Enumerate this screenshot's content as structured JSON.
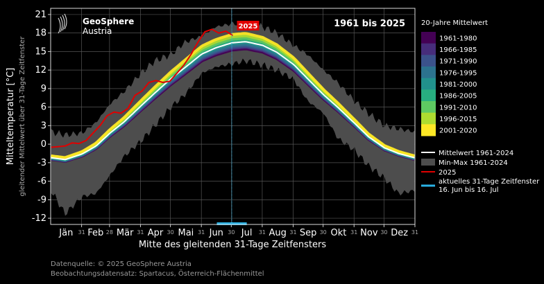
{
  "chart_data": {
    "type": "area",
    "title": "1961 bis 2025",
    "logo": {
      "name": "GeoSphere",
      "sub": "Austria"
    },
    "ylabel": "Mitteltemperatur [°C]",
    "ylabel_sub": "gleitender Mittelwert über 31-Tage Zeitfenster",
    "xlabel": "Mitte des gleitenden 31-Tage Zeitfensters",
    "ylim": [
      -13,
      22
    ],
    "yticks": [
      -12,
      -9,
      -6,
      -3,
      0,
      3,
      6,
      9,
      12,
      15,
      18,
      21
    ],
    "months": [
      "Jän",
      "Feb",
      "Mär",
      "Apr",
      "Mai",
      "Jun",
      "Jul",
      "Aug",
      "Sep",
      "Okt",
      "Nov",
      "Dez"
    ],
    "month_end_days": [
      "31",
      "28",
      "31",
      "30",
      "31",
      "30",
      "31",
      "31",
      "30",
      "31",
      "30",
      "31"
    ],
    "grid": true,
    "mean_1961_2024": {
      "name": "Mittelwert 1961-2024",
      "x": [
        1,
        15,
        32,
        46,
        60,
        74,
        91,
        105,
        121,
        135,
        152,
        166,
        182,
        196,
        213,
        227,
        244,
        258,
        274,
        288,
        305,
        319,
        335,
        349,
        365
      ],
      "y": [
        -2.2,
        -2.5,
        -1.6,
        -0.3,
        1.8,
        3.6,
        6.2,
        8.3,
        10.6,
        12.4,
        14.6,
        15.6,
        16.4,
        16.6,
        16.0,
        14.9,
        12.9,
        10.6,
        8.0,
        6.0,
        3.4,
        1.2,
        -0.6,
        -1.5,
        -2.2
      ]
    },
    "minmax_1961_2024": {
      "name": "Min-Max 1961-2024",
      "x": [
        1,
        15,
        32,
        46,
        60,
        74,
        91,
        105,
        121,
        135,
        152,
        166,
        182,
        196,
        213,
        227,
        244,
        258,
        274,
        288,
        305,
        319,
        335,
        349,
        365
      ],
      "min": [
        -7.5,
        -11.3,
        -8.5,
        -8.0,
        -5.0,
        -2.0,
        0.5,
        3.0,
        6.0,
        8.0,
        11.5,
        12.5,
        13.0,
        13.5,
        12.8,
        12.0,
        10.5,
        7.0,
        5.0,
        1.0,
        -1.0,
        -3.5,
        -5.5,
        -8.0,
        -7.5
      ],
      "max": [
        2.0,
        1.5,
        1.8,
        3.5,
        6.5,
        8.5,
        11.5,
        13.5,
        14.5,
        16.5,
        17.5,
        19.0,
        19.5,
        19.5,
        19.0,
        18.0,
        16.0,
        14.5,
        12.0,
        10.0,
        7.0,
        5.0,
        3.0,
        2.5,
        2.0
      ]
    },
    "series_2025": {
      "name": "2025",
      "x": [
        1,
        8,
        15,
        22,
        29,
        36,
        43,
        50,
        57,
        64,
        71,
        78,
        85,
        92,
        99,
        106,
        113,
        120,
        127,
        134,
        141,
        148,
        155,
        162,
        169,
        176,
        183
      ],
      "y": [
        -0.5,
        -0.4,
        -0.3,
        0.2,
        0.1,
        0.6,
        1.8,
        3.0,
        4.6,
        5.2,
        5.0,
        5.8,
        7.9,
        8.6,
        10.0,
        10.3,
        10.0,
        10.2,
        11.5,
        12.8,
        14.5,
        16.5,
        18.2,
        18.6,
        18.0,
        18.3,
        17.6
      ]
    },
    "series_2025_label": "2025",
    "current_window": {
      "name": "aktuelles 31-Tage Zeitfenster",
      "range_label": "16. Jun bis 16. Jul",
      "start": 167,
      "end": 197,
      "center": 182
    },
    "color_scale": {
      "title": "20-Jahre Mittelwert",
      "periods": [
        "1961-1980",
        "1966-1985",
        "1971-1990",
        "1976-1995",
        "1981-2000",
        "1986-2005",
        "1991-2010",
        "1996-2015",
        "2001-2020"
      ],
      "colors": [
        "#440154",
        "#472d7b",
        "#3b528b",
        "#2c728e",
        "#21918c",
        "#28ae80",
        "#5ec962",
        "#addc30",
        "#fde725"
      ],
      "offsets": [
        -0.9,
        -0.7,
        -0.55,
        -0.35,
        -0.1,
        0.15,
        0.45,
        0.75,
        1.05
      ]
    },
    "colors": {
      "mean": "#ffffff",
      "minmax": "#4d4d4d",
      "y2025": "#e10000",
      "window": "#2ab3e6"
    }
  },
  "source": {
    "line1": "Datenquelle: © 2025 GeoSphere Austria",
    "line2": "Beobachtungsdatensatz: Spartacus, Österreich-Flächenmittel"
  }
}
